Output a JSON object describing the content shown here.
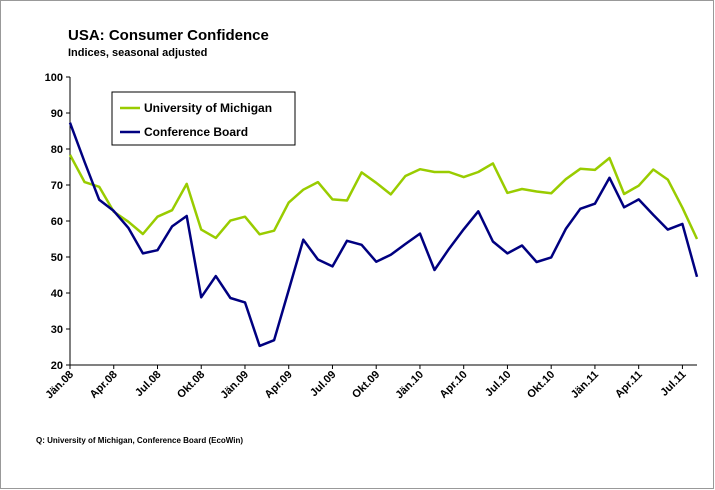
{
  "chart_data": {
    "type": "line",
    "title": "USA: Consumer Confidence",
    "subtitle": "Indices, seasonal adjusted",
    "source": "Q: University of Michigan, Conference Board (EcoWin)",
    "categories": [
      "Jän.08",
      null,
      null,
      "Apr.08",
      null,
      null,
      "Jul.08",
      null,
      null,
      "Okt.08",
      null,
      null,
      "Jän.09",
      null,
      null,
      "Apr.09",
      null,
      null,
      "Jul.09",
      null,
      null,
      "Okt.09",
      null,
      null,
      "Jän.10",
      null,
      null,
      "Apr.10",
      null,
      null,
      "Jul.10",
      null,
      null,
      "Okt.10",
      null,
      null,
      "Jän.11",
      null,
      null,
      "Apr.11",
      null,
      null,
      "Jul.11",
      null
    ],
    "series": [
      {
        "name": "University of Michigan",
        "color": "#99cc00",
        "values": [
          78.4,
          70.8,
          69.5,
          62.6,
          59.8,
          56.4,
          61.2,
          63,
          70.3,
          57.6,
          55.3,
          60.1,
          61.2,
          56.3,
          57.3,
          65.1,
          68.7,
          70.8,
          66,
          65.7,
          73.5,
          70.6,
          67.4,
          72.5,
          74.4,
          73.6,
          73.6,
          72.2,
          73.6,
          76,
          67.8,
          68.9,
          68.2,
          67.7,
          71.6,
          74.5,
          74.2,
          77.5,
          67.5,
          69.8,
          74.3,
          71.5,
          63.7,
          55
        ]
      },
      {
        "name": "Conference Board",
        "color": "#000080",
        "values": [
          87.3,
          76.4,
          65.9,
          62.8,
          58.1,
          51,
          51.9,
          58.5,
          61.4,
          38.8,
          44.7,
          38.6,
          37.4,
          25.3,
          26.9,
          40.8,
          54.8,
          49.3,
          47.4,
          54.5,
          53.4,
          48.7,
          50.6,
          53.6,
          56.5,
          46.4,
          52.3,
          57.7,
          62.7,
          54.3,
          51,
          53.2,
          48.6,
          49.9,
          57.8,
          63.4,
          64.8,
          72,
          63.8,
          66,
          61.7,
          57.6,
          59.2,
          44.5
        ]
      }
    ],
    "ylim": [
      20,
      100
    ],
    "yticks": [
      20,
      30,
      40,
      50,
      60,
      70,
      80,
      90,
      100
    ],
    "legend": "top-left"
  }
}
